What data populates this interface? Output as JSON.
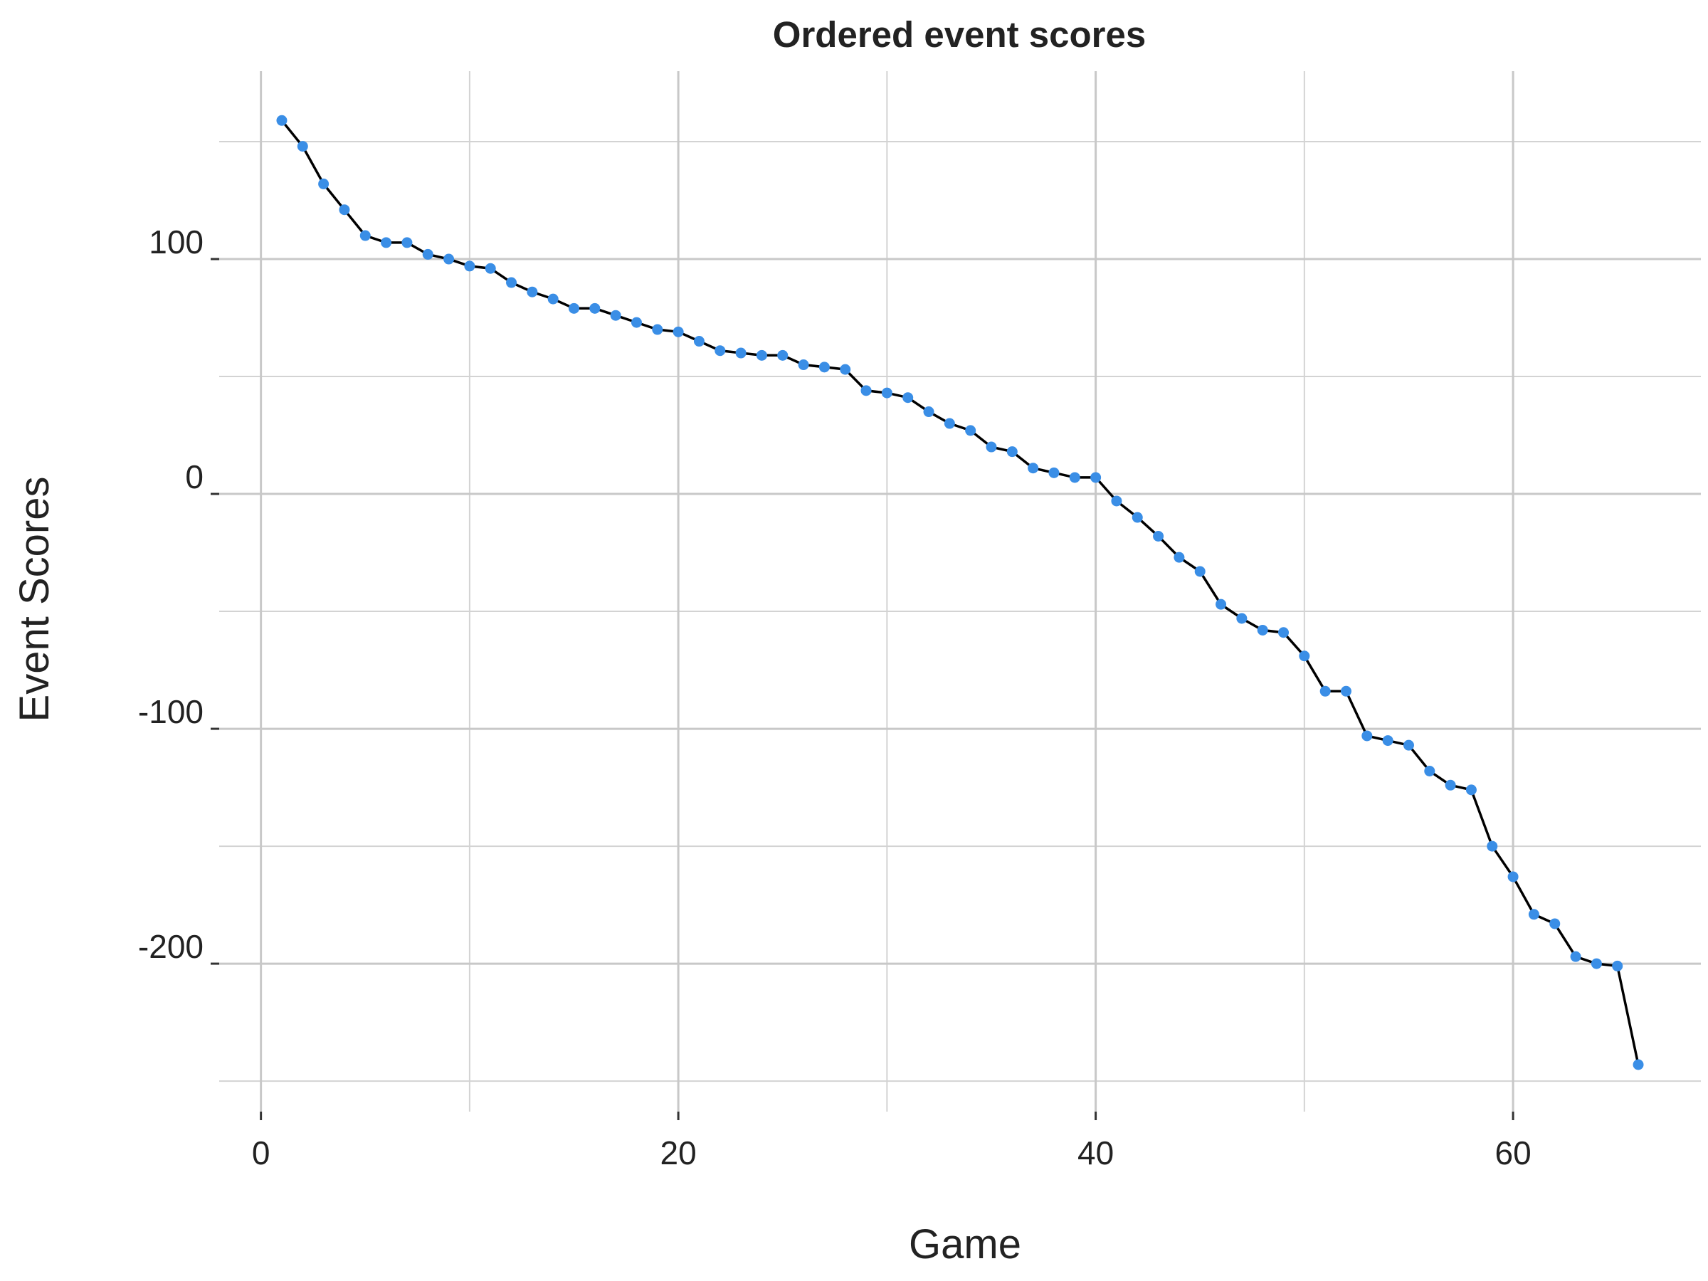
{
  "chart_data": {
    "type": "line",
    "title": "Ordered event scores",
    "xlabel": "Game",
    "ylabel": "Event Scores",
    "xlim": [
      -2,
      69
    ],
    "ylim": [
      -263,
      180
    ],
    "x_major_ticks": [
      0,
      20,
      40,
      60
    ],
    "x_minor_ticks": [
      10,
      30,
      50
    ],
    "y_major_ticks": [
      100,
      0,
      -100,
      -200
    ],
    "y_minor_ticks": [
      150,
      50,
      -50,
      -150,
      -250
    ],
    "x_tick_labels": [
      "0",
      "20",
      "40",
      "60"
    ],
    "y_tick_labels": [
      "100",
      "0",
      "-100",
      "-200"
    ],
    "grid": true,
    "legend": "none",
    "colors": {
      "point": "#3a8ee6",
      "line": "#000000"
    },
    "series": [
      {
        "x": [
          1,
          2,
          3,
          4,
          5,
          6,
          7,
          8,
          9,
          10,
          11,
          12,
          13,
          14,
          15,
          16,
          17,
          18,
          19,
          20,
          21,
          22,
          23,
          24,
          25,
          26,
          27,
          28,
          29,
          30,
          31,
          32,
          33,
          34,
          35,
          36,
          37,
          38,
          39,
          40,
          41,
          42,
          43,
          44,
          45,
          46,
          47,
          48,
          49,
          50,
          51,
          52,
          53,
          54,
          55,
          56,
          57,
          58,
          59,
          60,
          61,
          62,
          63,
          64,
          65,
          66
        ],
        "values": [
          159,
          148,
          132,
          121,
          110,
          107,
          107,
          102,
          100,
          97,
          96,
          90,
          86,
          83,
          79,
          79,
          76,
          73,
          70,
          69,
          65,
          61,
          60,
          59,
          59,
          55,
          54,
          53,
          44,
          43,
          41,
          35,
          30,
          27,
          20,
          18,
          11,
          9,
          7,
          7,
          -3,
          -10,
          -18,
          -27,
          -33,
          -47,
          -53,
          -58,
          -59,
          -69,
          -84,
          -84,
          -103,
          -105,
          -107,
          -118,
          -124,
          -126,
          -150,
          -163,
          -179,
          -183,
          -197,
          -200,
          -201,
          -243
        ]
      }
    ]
  }
}
